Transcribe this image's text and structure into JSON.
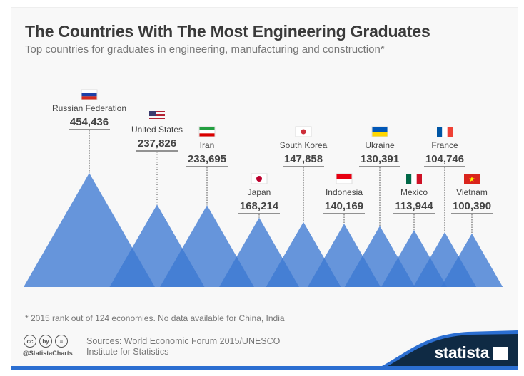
{
  "title": "The Countries With The Most Engineering Graduates",
  "subtitle": "Top countries for graduates in engineering, manufacturing and construction*",
  "footnote": "* 2015 rank out of 124 economies. No data available for China, India",
  "sources_line1": "Sources: World Economic Forum 2015/UNESCO",
  "sources_line2": "Institute for Statistics",
  "handle": "@StatistaCharts",
  "brand": "statista",
  "cc_icons": [
    "cc",
    "by",
    "="
  ],
  "colors": {
    "triangle": "#3c78d2",
    "brand_dark": "#0f2a44",
    "brand_blue": "#2b6ed1"
  },
  "chart_data": {
    "type": "area",
    "title": "The Countries With The Most Engineering Graduates",
    "categories": [
      "Russian Federation",
      "United States",
      "Iran",
      "Japan",
      "South Korea",
      "Indonesia",
      "Ukraine",
      "Mexico",
      "France",
      "Vietnam"
    ],
    "values": [
      454436,
      237826,
      233695,
      168214,
      147858,
      140169,
      130391,
      113944,
      104746,
      100390
    ],
    "value_labels": [
      "454,436",
      "237,826",
      "233,695",
      "168,214",
      "147,858",
      "140,169",
      "130,391",
      "113,944",
      "104,746",
      "100,390"
    ],
    "flags": [
      "russia-flag",
      "usa-flag",
      "iran-flag",
      "japan-flag",
      "south-korea-flag",
      "indonesia-flag",
      "ukraine-flag",
      "mexico-flag",
      "france-flag",
      "vietnam-flag"
    ]
  }
}
